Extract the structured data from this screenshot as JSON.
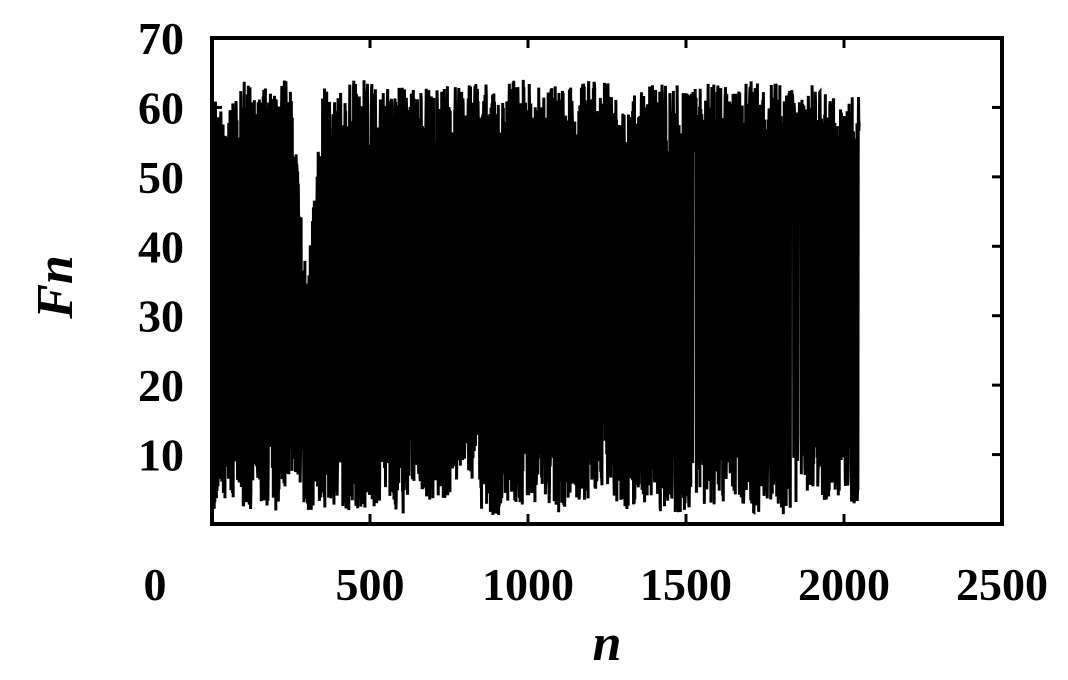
{
  "chart_data": {
    "type": "line",
    "title": "",
    "xlabel": "n",
    "ylabel": "Fn",
    "xlim": [
      0,
      2500
    ],
    "ylim": [
      0,
      70
    ],
    "xticks": [
      0,
      500,
      1000,
      1500,
      2000,
      2500
    ],
    "yticks": [
      10,
      20,
      30,
      40,
      50,
      60,
      70
    ],
    "grid": false,
    "legend": "none",
    "series": [
      {
        "color": "#000000",
        "n_points": 2048,
        "x_range": [
          1,
          2048
        ],
        "y_range": [
          1,
          64
        ],
        "envelope_x": [
          0,
          50,
          100,
          150,
          200,
          250,
          300,
          350,
          400,
          450,
          500,
          550,
          600,
          650,
          700,
          750,
          800,
          850,
          900,
          950,
          1000,
          1050,
          1100,
          1150,
          1200,
          1250,
          1300,
          1350,
          1400,
          1450,
          1500,
          1550,
          1600,
          1650,
          1700,
          1750,
          1800,
          1850,
          1900,
          1950,
          2000,
          2048
        ],
        "envelope_max": [
          62,
          59,
          64,
          62,
          64,
          64,
          35,
          63,
          62,
          64,
          64,
          63,
          63,
          64,
          62,
          64,
          63,
          64,
          62,
          64,
          64,
          63,
          64,
          63,
          64,
          64,
          62,
          63,
          64,
          63,
          64,
          63,
          64,
          62,
          64,
          63,
          64,
          62,
          64,
          62,
          60,
          63
        ],
        "envelope_min": [
          1,
          4,
          1,
          3,
          1,
          8,
          2,
          2,
          3,
          1,
          2,
          4,
          1,
          6,
          2,
          4,
          9,
          2,
          1,
          3,
          2,
          4,
          1,
          3,
          2,
          5,
          1,
          3,
          2,
          1,
          1,
          3,
          2,
          4,
          1,
          2,
          1,
          3,
          5,
          2,
          4,
          2
        ]
      }
    ]
  }
}
